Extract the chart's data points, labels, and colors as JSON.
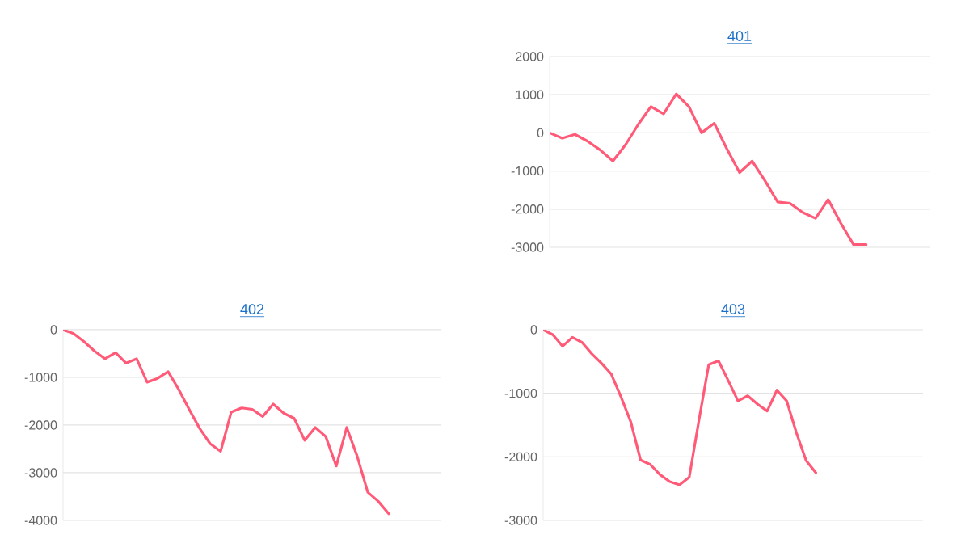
{
  "chart_data": [
    {
      "type": "line",
      "title": "401",
      "color": "#ff5a78",
      "grid": "y",
      "tick_labels": "y",
      "ylim": [
        -3000,
        2000
      ],
      "yticks": [
        -3000,
        -2000,
        -1000,
        0,
        1000,
        2000
      ],
      "categories": [
        null,
        null,
        null,
        null,
        null,
        null,
        null,
        null,
        null,
        null,
        null,
        null,
        null,
        null,
        null,
        null,
        null,
        null,
        null,
        null,
        null,
        null,
        null,
        null,
        null,
        null,
        null,
        null,
        null,
        null,
        null
      ],
      "values": [
        0,
        -140,
        -40,
        -220,
        -450,
        -740,
        -310,
        220,
        690,
        500,
        1020,
        690,
        0,
        250,
        -420,
        -1040,
        -740,
        -1250,
        -1810,
        -1850,
        -2090,
        -2240,
        -1750,
        -2370,
        -2930,
        -2930,
        null,
        null,
        null,
        null,
        null
      ]
    },
    {
      "type": "line",
      "title": "402",
      "color": "#ff5a78",
      "grid": "y",
      "tick_labels": "y",
      "ylim": [
        -4000,
        0
      ],
      "yticks": [
        -4000,
        -3000,
        -2000,
        -1000,
        0
      ],
      "categories": [
        null,
        null,
        null,
        null,
        null,
        null,
        null,
        null,
        null,
        null,
        null,
        null,
        null,
        null,
        null,
        null,
        null,
        null,
        null,
        null,
        null,
        null,
        null,
        null,
        null,
        null,
        null,
        null,
        null,
        null,
        null,
        null,
        null,
        null,
        null,
        null,
        null
      ],
      "values": [
        0,
        -80,
        -250,
        -450,
        -610,
        -480,
        -700,
        -610,
        -1100,
        -1020,
        -880,
        -1250,
        -1670,
        -2070,
        -2390,
        -2550,
        -1730,
        -1640,
        -1670,
        -1820,
        -1560,
        -1750,
        -1860,
        -2320,
        -2050,
        -2240,
        -2860,
        -2050,
        -2660,
        -3410,
        -3600,
        -3860,
        null,
        null,
        null,
        null,
        null
      ]
    },
    {
      "type": "line",
      "title": "403",
      "color": "#ff5a78",
      "grid": "y",
      "tick_labels": "y",
      "ylim": [
        -3000,
        0
      ],
      "yticks": [
        -3000,
        -2000,
        -1000,
        0
      ],
      "categories": [
        null,
        null,
        null,
        null,
        null,
        null,
        null,
        null,
        null,
        null,
        null,
        null,
        null,
        null,
        null,
        null,
        null,
        null,
        null,
        null,
        null,
        null,
        null,
        null,
        null,
        null,
        null,
        null,
        null,
        null,
        null,
        null,
        null,
        null,
        null,
        null,
        null,
        null,
        null,
        null
      ],
      "values": [
        0,
        -80,
        -260,
        -120,
        -200,
        -380,
        -530,
        -700,
        -1060,
        -1450,
        -2050,
        -2120,
        -2280,
        -2390,
        -2440,
        -2320,
        -1420,
        -550,
        -490,
        -800,
        -1120,
        -1040,
        -1170,
        -1280,
        -950,
        -1120,
        -1620,
        -2060,
        -2250,
        null,
        null,
        null,
        null,
        null,
        null,
        null,
        null,
        null,
        null,
        null
      ]
    }
  ]
}
